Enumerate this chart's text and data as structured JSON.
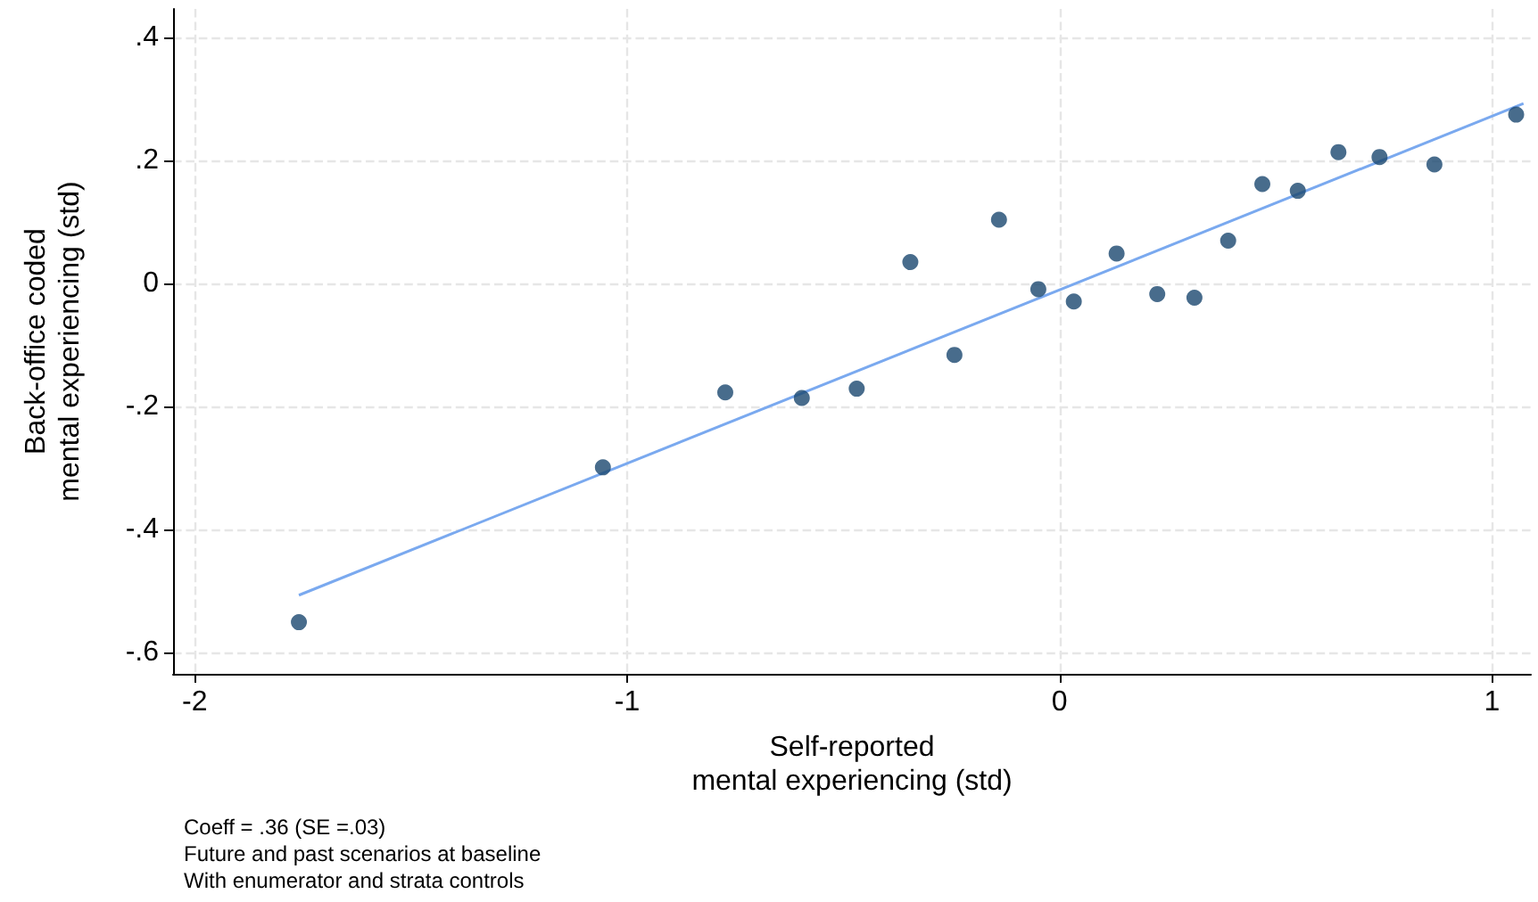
{
  "chart_data": {
    "type": "scatter",
    "xlabel": "Self-reported\nmental experiencing (std)",
    "ylabel": "Back-office coded\nmental experiencing (std)",
    "annotations": [
      "Coeff = .36 (SE =.03)",
      "Future and past scenarios at baseline",
      "With enumerator and strata controls"
    ],
    "xlim": [
      -2.05,
      1.09
    ],
    "xticks": [
      -2,
      -1,
      0,
      1
    ],
    "ylim": [
      -0.635,
      0.447
    ],
    "yticks": [
      {
        "value": 0.4,
        "label": ".4"
      },
      {
        "value": 0.2,
        "label": ".2"
      },
      0,
      {
        "value": -0.2,
        "label": "-.2"
      },
      {
        "value": -0.4,
        "label": "-.4"
      },
      {
        "value": -0.6,
        "label": "-.6"
      }
    ],
    "grid": true,
    "marker": "circle",
    "series": [
      {
        "color": "#1a476f",
        "x": [
          -1.759,
          -1.056,
          -0.773,
          -0.596,
          -0.469,
          -0.345,
          -0.243,
          -0.14,
          -0.049,
          0.033,
          0.132,
          0.226,
          0.312,
          0.39,
          0.469,
          0.551,
          0.645,
          0.74,
          0.867,
          1.056
        ],
        "values": [
          -0.551,
          -0.299,
          -0.177,
          -0.186,
          -0.171,
          0.035,
          -0.116,
          0.104,
          -0.009,
          -0.029,
          0.049,
          -0.017,
          -0.023,
          0.07,
          0.162,
          0.151,
          0.214,
          0.206,
          0.194,
          0.275
        ]
      },
      {
        "type": "line",
        "color": "#7aa9ef",
        "marker": "none",
        "line_style": "solid",
        "x": [
          -1.759,
          1.073
        ],
        "values": [
          -0.507,
          0.293
        ]
      }
    ]
  }
}
